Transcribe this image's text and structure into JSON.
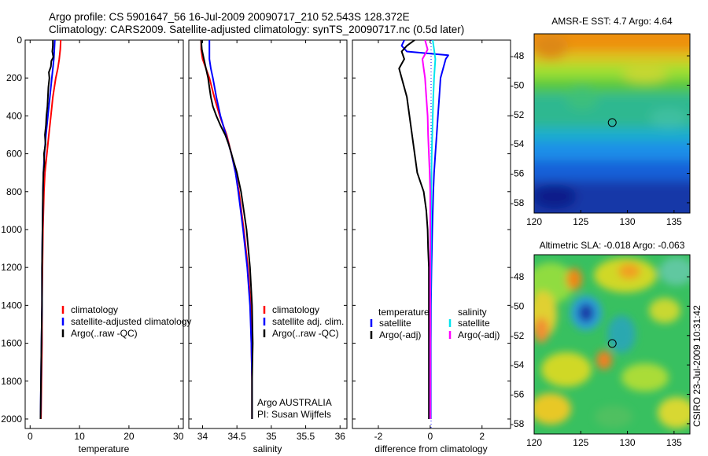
{
  "header": {
    "line1": "Argo profile: CS 5901647_56 16-Jul-2009 20090717_210 52.543S 128.372E",
    "line2": "Climatology: CARS2009. Satellite-adjusted climatology: synTS_20090717.nc (0.5d later)"
  },
  "colors": {
    "climatology": "#ff0000",
    "satellite": "#0000ff",
    "argo": "#000000",
    "salinity_satellite": "#00e5ee",
    "salinity_argo": "#ff00ff"
  },
  "chart_data": [
    {
      "type": "line",
      "name": "temperature-profile",
      "xlabel": "temperature",
      "ylabel": "",
      "xlim": [
        -1,
        31
      ],
      "ylim": [
        2050,
        0
      ],
      "y_inverted": true,
      "xticks": [
        0,
        10,
        20,
        30
      ],
      "yticks": [
        0,
        200,
        400,
        600,
        800,
        1000,
        1200,
        1400,
        1600,
        1800,
        2000
      ],
      "series": [
        {
          "name": "climatology",
          "color": "#ff0000",
          "depth": [
            0,
            50,
            100,
            150,
            200,
            300,
            400,
            500,
            600,
            700,
            800,
            1000,
            1200,
            1400,
            1600,
            1800,
            2000
          ],
          "values": [
            6.2,
            6.1,
            5.9,
            5.6,
            5.2,
            4.6,
            4.2,
            3.8,
            3.4,
            3.0,
            2.8,
            2.6,
            2.5,
            2.4,
            2.4,
            2.3,
            2.2
          ]
        },
        {
          "name": "satellite-adjusted climatology",
          "color": "#0000ff",
          "depth": [
            0,
            50,
            100,
            150,
            200,
            300,
            400,
            500,
            600,
            700,
            800,
            1000,
            1200,
            1400,
            1600,
            1800,
            2000
          ],
          "values": [
            5.0,
            4.9,
            4.8,
            4.6,
            4.4,
            4.0,
            3.6,
            3.2,
            2.9,
            2.7,
            2.6,
            2.5,
            2.4,
            2.4,
            2.3,
            2.2,
            2.1
          ]
        },
        {
          "name": "Argo(..raw -QC)",
          "color": "#000000",
          "depth": [
            0,
            30,
            60,
            90,
            110,
            140,
            170,
            200,
            250,
            300,
            350,
            400,
            450,
            500,
            550,
            600,
            650,
            700,
            800,
            1000,
            1200,
            1400,
            1600,
            1800,
            2000
          ],
          "values": [
            4.6,
            4.6,
            4.5,
            4.7,
            4.3,
            4.2,
            3.8,
            3.9,
            3.7,
            3.6,
            3.5,
            3.3,
            3.2,
            3.0,
            3.1,
            2.8,
            2.9,
            2.7,
            2.6,
            2.5,
            2.4,
            2.4,
            2.3,
            2.2,
            2.1
          ]
        }
      ],
      "legend": [
        "climatology",
        "satellite-adjusted climatology",
        "Argo(..raw -QC)"
      ],
      "legend_position": "lower-right"
    },
    {
      "type": "line",
      "name": "salinity-profile",
      "xlabel": "salinity",
      "ylabel": "",
      "xlim": [
        33.8,
        36.1
      ],
      "ylim": [
        2050,
        0
      ],
      "y_inverted": true,
      "xticks": [
        34,
        34.5,
        35,
        35.5,
        36
      ],
      "series": [
        {
          "name": "climatology",
          "color": "#ff0000",
          "depth": [
            0,
            50,
            100,
            150,
            200,
            300,
            400,
            500,
            600,
            700,
            800,
            1000,
            1200,
            1400,
            1600,
            1800,
            2000
          ],
          "values": [
            33.98,
            33.98,
            34.0,
            34.05,
            34.1,
            34.17,
            34.25,
            34.35,
            34.42,
            34.48,
            34.53,
            34.6,
            34.66,
            34.7,
            34.71,
            34.72,
            34.72
          ]
        },
        {
          "name": "satellite adj. clim.",
          "color": "#0000ff",
          "depth": [
            0,
            50,
            100,
            150,
            200,
            300,
            400,
            500,
            600,
            700,
            800,
            1000,
            1200,
            1400,
            1600,
            1800,
            2000
          ],
          "values": [
            34.1,
            34.1,
            34.1,
            34.12,
            34.15,
            34.2,
            34.26,
            34.34,
            34.42,
            34.48,
            34.52,
            34.59,
            34.65,
            34.69,
            34.71,
            34.72,
            34.72
          ]
        },
        {
          "name": "Argo(..raw -QC)",
          "color": "#000000",
          "depth": [
            0,
            50,
            100,
            150,
            200,
            250,
            300,
            350,
            400,
            450,
            500,
            550,
            600,
            700,
            800,
            1000,
            1200,
            1400,
            1600,
            1800,
            2000
          ],
          "values": [
            33.98,
            33.99,
            34.02,
            34.05,
            34.08,
            34.1,
            34.12,
            34.15,
            34.2,
            34.26,
            34.33,
            34.38,
            34.42,
            34.5,
            34.56,
            34.64,
            34.69,
            34.72,
            34.73,
            34.72,
            34.72
          ]
        }
      ],
      "legend": [
        "climatology",
        "satellite adj. clim.",
        "Argo(..raw -QC)"
      ],
      "legend_position": "lower-right",
      "annotation": [
        "Argo AUSTRALIA",
        "PI: Susan Wijffels"
      ]
    },
    {
      "type": "line",
      "name": "difference-profile",
      "xlabel": "difference from climatology",
      "ylabel": "",
      "xlim": [
        -3,
        3.1
      ],
      "ylim": [
        2050,
        0
      ],
      "y_inverted": true,
      "xticks": [
        -2,
        0,
        2
      ],
      "series": [
        {
          "name": "temperature satellite",
          "color": "#0000ff",
          "depth": [
            0,
            30,
            60,
            80,
            100,
            150,
            200,
            300,
            400,
            500,
            600,
            700,
            800,
            1000,
            1200,
            1400,
            1600,
            1800,
            2000
          ],
          "values": [
            -1.0,
            -1.1,
            -0.9,
            0.7,
            0.6,
            0.5,
            0.4,
            0.35,
            0.3,
            0.25,
            0.2,
            0.15,
            0.12,
            0.08,
            0.05,
            0.03,
            0.02,
            0.02,
            0.02
          ]
        },
        {
          "name": "temperature Argo(-adj)",
          "color": "#000000",
          "depth": [
            0,
            30,
            60,
            100,
            150,
            200,
            300,
            400,
            500,
            600,
            700,
            800,
            900,
            1000,
            1100,
            1200,
            1400,
            1600,
            1800,
            2000
          ],
          "values": [
            -0.6,
            -0.9,
            -1.1,
            -1.0,
            -1.2,
            -1.1,
            -0.9,
            -0.8,
            -0.7,
            -0.6,
            -0.5,
            -0.25,
            -0.15,
            -0.1,
            -0.08,
            -0.05,
            -0.05,
            -0.05,
            -0.05,
            -0.05
          ]
        },
        {
          "name": "salinity satellite",
          "color": "#00e5ee",
          "depth": [
            0,
            50,
            100,
            200,
            300,
            400,
            500,
            600,
            700,
            800,
            1000,
            1200,
            1400,
            1600,
            1800,
            2000
          ],
          "values": [
            0.1,
            0.15,
            0.2,
            0.15,
            0.12,
            0.1,
            0.08,
            0.06,
            0.05,
            0.04,
            0.03,
            0.02,
            0.01,
            0.0,
            0.0,
            0.0
          ]
        },
        {
          "name": "salinity Argo(-adj)",
          "color": "#ff00ff",
          "depth": [
            0,
            50,
            100,
            150,
            200,
            300,
            400,
            500,
            600,
            700,
            800,
            1000,
            1200,
            1400,
            1600,
            1800,
            2000
          ],
          "values": [
            -0.2,
            -0.1,
            -0.3,
            -0.25,
            -0.2,
            -0.15,
            -0.1,
            -0.08,
            -0.05,
            -0.02,
            0.0,
            0.0,
            0.0,
            0.0,
            0.0,
            0.0,
            0.0
          ]
        }
      ],
      "legend_titles": [
        "temperature",
        "salinity"
      ],
      "legend": [
        "satellite",
        "Argo(-adj)",
        "satellite",
        "Argo(-adj)"
      ],
      "legend_position": "lower-right"
    },
    {
      "type": "heatmap",
      "name": "sst-map",
      "title": "AMSR-E SST: 4.7 Argo: 4.64",
      "xlim": [
        120,
        136.7
      ],
      "ylim": [
        -58.7,
        -46.5
      ],
      "xticks": [
        120,
        125,
        130,
        135
      ],
      "yticks": [
        -48,
        -50,
        -52,
        -54,
        -56,
        -58
      ],
      "marker": {
        "x": 128.37,
        "y": -52.54
      }
    },
    {
      "type": "heatmap",
      "name": "sla-map",
      "title": "Altimetric SLA: -0.018 Argo: -0.063",
      "xlim": [
        120,
        136.7
      ],
      "ylim": [
        -58.7,
        -46.5
      ],
      "xticks": [
        120,
        125,
        130,
        135
      ],
      "yticks": [
        -48,
        -50,
        -52,
        -54,
        -56,
        -58
      ],
      "marker": {
        "x": 128.37,
        "y": -52.54
      }
    }
  ],
  "credit": "CSIRO 23-Jul-2009 10:31:42"
}
